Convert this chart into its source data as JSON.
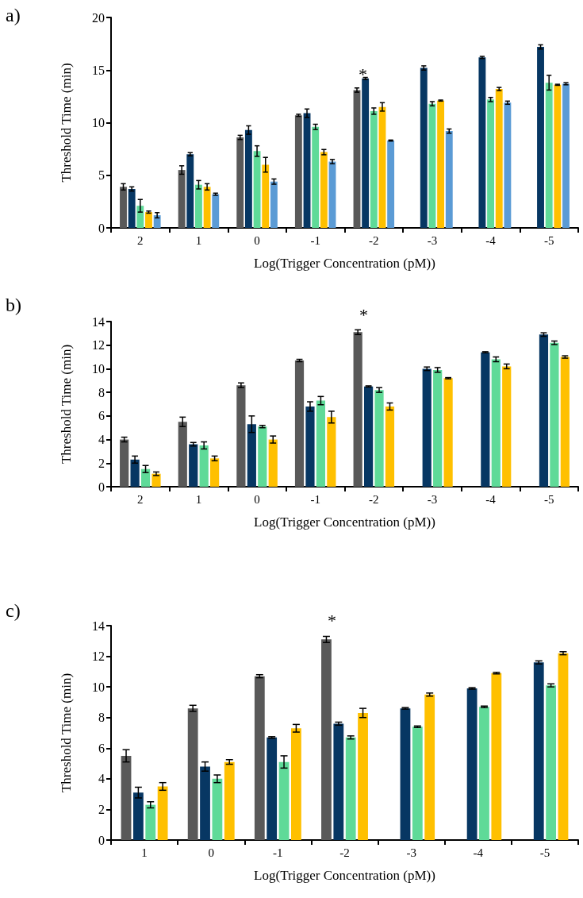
{
  "chart_data": [
    {
      "type": "bar",
      "title": "a)",
      "xlabel": "Log(Trigger Concentration (pM))",
      "ylabel": "Threshold Time (min)",
      "categories": [
        "2",
        "1",
        "0",
        "-1",
        "-2",
        "-3",
        "-4",
        "-5"
      ],
      "series": [
        {
          "color": "#595959",
          "values": [
            3.9,
            5.5,
            8.6,
            10.7,
            13.1,
            null,
            null,
            null
          ],
          "errors": [
            0.3,
            0.4,
            0.2,
            0.1,
            0.2,
            null,
            null,
            null
          ]
        },
        {
          "color": "#073763",
          "values": [
            3.7,
            7.0,
            9.3,
            10.9,
            14.2,
            15.2,
            16.2,
            17.2
          ],
          "errors": [
            0.2,
            0.15,
            0.4,
            0.4,
            0.1,
            0.2,
            0.1,
            0.2
          ]
        },
        {
          "color": "#5fda98",
          "values": [
            2.1,
            4.1,
            7.3,
            9.6,
            11.1,
            11.8,
            12.2,
            13.8
          ],
          "errors": [
            0.6,
            0.4,
            0.5,
            0.25,
            0.3,
            0.2,
            0.2,
            0.7
          ]
        },
        {
          "color": "#ffc000",
          "values": [
            1.5,
            3.9,
            6.0,
            7.2,
            11.5,
            12.1,
            13.2,
            13.6
          ],
          "errors": [
            0.1,
            0.3,
            0.7,
            0.25,
            0.4,
            0.05,
            0.15,
            0.05
          ]
        },
        {
          "color": "#5b9bd5",
          "values": [
            1.2,
            3.2,
            4.4,
            6.3,
            8.3,
            9.2,
            11.9,
            13.7
          ],
          "errors": [
            0.25,
            0.1,
            0.25,
            0.2,
            0.05,
            0.2,
            0.15,
            0.1
          ]
        }
      ],
      "ylim": [
        0,
        20
      ],
      "yticks": [
        0,
        5,
        10,
        15,
        20
      ],
      "grid": false,
      "annotations": [
        "*"
      ]
    },
    {
      "type": "bar",
      "title": "b)",
      "xlabel": "Log(Trigger Concentration (pM))",
      "ylabel": "Threshold Time (min)",
      "categories": [
        "2",
        "1",
        "0",
        "-1",
        "-2",
        "-3",
        "-4",
        "-5"
      ],
      "series": [
        {
          "color": "#595959",
          "values": [
            4.0,
            5.5,
            8.6,
            10.7,
            13.1,
            null,
            null,
            null
          ],
          "errors": [
            0.2,
            0.4,
            0.2,
            0.1,
            0.2,
            null,
            null,
            null
          ]
        },
        {
          "color": "#073763",
          "values": [
            2.3,
            3.6,
            5.3,
            6.8,
            8.5,
            10.0,
            11.4,
            12.9
          ],
          "errors": [
            0.3,
            0.15,
            0.7,
            0.4,
            0.05,
            0.15,
            0.05,
            0.15
          ]
        },
        {
          "color": "#5fda98",
          "values": [
            1.5,
            3.5,
            5.1,
            7.3,
            8.2,
            9.9,
            10.8,
            12.2
          ],
          "errors": [
            0.3,
            0.3,
            0.1,
            0.35,
            0.2,
            0.2,
            0.2,
            0.15
          ]
        },
        {
          "color": "#ffc000",
          "values": [
            1.1,
            2.4,
            4.0,
            5.9,
            6.8,
            9.2,
            10.2,
            11.0
          ],
          "errors": [
            0.15,
            0.2,
            0.3,
            0.5,
            0.3,
            0.05,
            0.2,
            0.1
          ]
        }
      ],
      "ylim": [
        0,
        14
      ],
      "yticks": [
        0,
        2,
        4,
        6,
        8,
        10,
        12,
        14
      ],
      "grid": false,
      "annotations": [
        "*"
      ]
    },
    {
      "type": "bar",
      "title": "c)",
      "xlabel": "Log(Trigger Concentration (pM))",
      "ylabel": "Threshold Time (min)",
      "categories": [
        "1",
        "0",
        "-1",
        "-2",
        "-3",
        "-4",
        "-5"
      ],
      "series": [
        {
          "color": "#595959",
          "values": [
            5.5,
            8.6,
            10.7,
            13.1,
            null,
            null,
            null
          ],
          "errors": [
            0.4,
            0.2,
            0.1,
            0.2,
            null,
            null,
            null
          ]
        },
        {
          "color": "#073763",
          "values": [
            3.1,
            4.8,
            6.7,
            7.6,
            8.6,
            9.9,
            11.6
          ],
          "errors": [
            0.35,
            0.3,
            0.05,
            0.1,
            0.05,
            0.05,
            0.1
          ]
        },
        {
          "color": "#5fda98",
          "values": [
            2.3,
            4.0,
            5.1,
            6.7,
            7.4,
            8.7,
            10.1
          ],
          "errors": [
            0.2,
            0.25,
            0.4,
            0.1,
            0.05,
            0.05,
            0.1
          ]
        },
        {
          "color": "#ffc000",
          "values": [
            3.5,
            5.1,
            7.3,
            8.3,
            9.5,
            10.9,
            12.2
          ],
          "errors": [
            0.25,
            0.15,
            0.25,
            0.3,
            0.1,
            0.05,
            0.1
          ]
        }
      ],
      "ylim": [
        0,
        14
      ],
      "yticks": [
        0,
        2,
        4,
        6,
        8,
        10,
        12,
        14
      ],
      "grid": false,
      "annotations": [
        "*"
      ]
    }
  ]
}
